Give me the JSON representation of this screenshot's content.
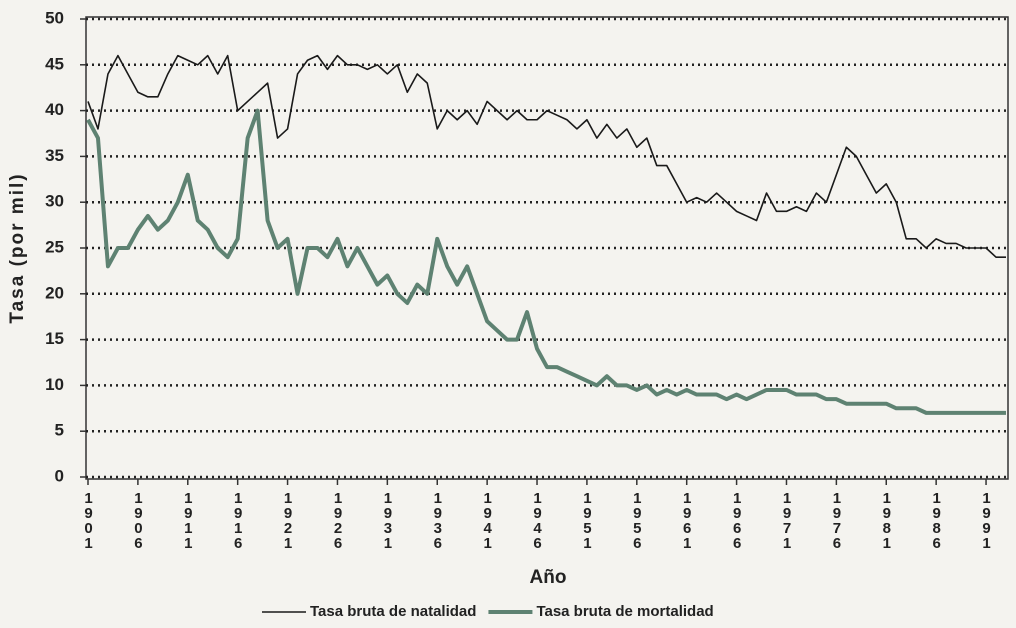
{
  "chart_data": {
    "type": "line",
    "x_label": "Año",
    "y_label": "Tasa (por mil)",
    "x": [
      1901,
      1902,
      1903,
      1904,
      1905,
      1906,
      1907,
      1908,
      1909,
      1910,
      1911,
      1912,
      1913,
      1914,
      1915,
      1916,
      1917,
      1918,
      1919,
      1920,
      1921,
      1922,
      1923,
      1924,
      1925,
      1926,
      1927,
      1928,
      1929,
      1930,
      1931,
      1932,
      1933,
      1934,
      1935,
      1936,
      1937,
      1938,
      1939,
      1940,
      1941,
      1942,
      1943,
      1944,
      1945,
      1946,
      1947,
      1948,
      1949,
      1950,
      1951,
      1952,
      1953,
      1954,
      1955,
      1956,
      1957,
      1958,
      1959,
      1960,
      1961,
      1962,
      1963,
      1964,
      1965,
      1966,
      1967,
      1968,
      1969,
      1970,
      1971,
      1972,
      1973,
      1974,
      1975,
      1976,
      1977,
      1978,
      1979,
      1980,
      1981,
      1982,
      1983,
      1984,
      1985,
      1986,
      1987,
      1988,
      1989,
      1990,
      1991,
      1992,
      1993
    ],
    "series": [
      {
        "name": "Tasa bruta de natalidad",
        "color": "#1a1a1a",
        "width": 1.6,
        "values": [
          41,
          38,
          44,
          46,
          44,
          42,
          41.5,
          41.5,
          44,
          46,
          45.5,
          45,
          46,
          44,
          46,
          40,
          41,
          42,
          43,
          37,
          38,
          44,
          45.5,
          46,
          44.5,
          46,
          45,
          45,
          44.5,
          45,
          44,
          45,
          42,
          44,
          43,
          38,
          40,
          39,
          40,
          38.5,
          41,
          40,
          39,
          40,
          39,
          39,
          40,
          39.5,
          39,
          38,
          39,
          37,
          38.5,
          37,
          38,
          36,
          37,
          34,
          34,
          32,
          30,
          30.5,
          30,
          31,
          30,
          29,
          28.5,
          28,
          31,
          29,
          29,
          29.5,
          29,
          31,
          30,
          33,
          36,
          35,
          33,
          31,
          32,
          30,
          26,
          26,
          25,
          26,
          25.5,
          25.5,
          25,
          25,
          25,
          24,
          24
        ]
      },
      {
        "name": "Tasa bruta de mortalidad",
        "color": "#5e8272",
        "width": 4,
        "values": [
          39,
          37,
          23,
          25,
          25,
          27,
          28.5,
          27,
          28,
          30,
          33,
          28,
          27,
          25,
          24,
          26,
          37,
          40,
          28,
          25,
          26,
          20,
          25,
          25,
          24,
          26,
          23,
          25,
          23,
          21,
          22,
          20,
          19,
          21,
          20,
          26,
          23,
          21,
          23,
          20,
          17,
          16,
          15,
          15,
          18,
          14,
          12,
          12,
          11.5,
          11,
          10.5,
          10,
          11,
          10,
          10,
          9.5,
          10,
          9,
          9.5,
          9,
          9.5,
          9,
          9,
          9,
          8.5,
          9,
          8.5,
          9,
          9.5,
          9.5,
          9.5,
          9,
          9,
          9,
          8.5,
          8.5,
          8,
          8,
          8,
          8,
          8,
          7.5,
          7.5,
          7.5,
          7,
          7,
          7,
          7,
          7,
          7,
          7,
          7,
          7
        ]
      }
    ],
    "xlim": [
      1901,
      1993
    ],
    "xticks": [
      1901,
      1906,
      1911,
      1916,
      1921,
      1926,
      1931,
      1936,
      1941,
      1946,
      1951,
      1956,
      1961,
      1966,
      1971,
      1976,
      1981,
      1986,
      1991
    ],
    "ylim": [
      0,
      50
    ],
    "yticks": [
      0,
      5,
      10,
      15,
      20,
      25,
      30,
      35,
      40,
      45,
      50
    ],
    "grid": true,
    "legend": "bottom"
  }
}
